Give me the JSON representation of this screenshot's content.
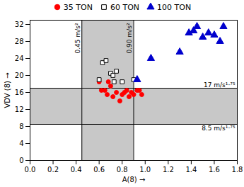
{
  "chart_data": {
    "type": "scatter",
    "xlabel": "A(8)",
    "ylabel": "VDV (8)",
    "xlim": [
      0.0,
      1.8
    ],
    "ylim": [
      0,
      33
    ],
    "xticks": [
      {
        "value": 0.0,
        "label": "0.0"
      },
      0.2,
      0.4,
      0.6,
      0.8,
      {
        "value": 1.0,
        "label": "1.0"
      },
      1.2,
      1.4,
      1.6,
      1.8
    ],
    "yticks": [
      0,
      4,
      8,
      12,
      16,
      20,
      24,
      28,
      32
    ],
    "legend": "top",
    "series": [
      {
        "name": "35 TON",
        "color": "#ff0000",
        "marker": "circle",
        "x": [
          0.6,
          0.62,
          0.65,
          0.67,
          0.68,
          0.7,
          0.72,
          0.75,
          0.78,
          0.8,
          0.82,
          0.84,
          0.86,
          0.88,
          0.9,
          0.93,
          0.95,
          0.97
        ],
        "values": [
          18.5,
          16.5,
          16.5,
          15.5,
          18.5,
          17.5,
          15.0,
          16.0,
          14.0,
          15.5,
          16.0,
          16.5,
          15.0,
          16.0,
          15.5,
          16.5,
          16.5,
          15.5
        ]
      },
      {
        "name": "60 TON",
        "color": "#000000",
        "marker": "square-open",
        "x": [
          0.6,
          0.63,
          0.66,
          0.7,
          0.72,
          0.73,
          0.75,
          0.8,
          0.9
        ],
        "values": [
          19.0,
          23.0,
          23.5,
          20.5,
          20.0,
          18.5,
          21.0,
          18.5,
          19.0
        ]
      },
      {
        "name": "100 TON",
        "color": "#0000cd",
        "marker": "triangle",
        "x": [
          1.05,
          1.3,
          1.38,
          1.42,
          1.45,
          1.5,
          1.55,
          1.6,
          1.65,
          1.68,
          0.93
        ],
        "values": [
          24.0,
          25.5,
          30.0,
          30.5,
          31.5,
          29.0,
          30.0,
          29.5,
          28.0,
          31.5,
          19.0
        ]
      }
    ],
    "bands": [
      {
        "axis": "x",
        "from": 0.45,
        "to": 0.9,
        "color": "#c8c8c8"
      },
      {
        "axis": "y",
        "from": 8.5,
        "to": 17.0,
        "color": "#c8c8c8"
      }
    ],
    "annotations": [
      {
        "type": "vline",
        "value": 0.45,
        "label": "0.45 m/s²"
      },
      {
        "type": "vline",
        "value": 0.9,
        "label": "0.90 m/s²"
      },
      {
        "type": "hline",
        "value": 17.0,
        "label": "17 m/s¹·⁷⁵"
      },
      {
        "type": "hline",
        "value": 8.5,
        "label": "8.5 m/s¹·⁷⁵"
      }
    ]
  }
}
